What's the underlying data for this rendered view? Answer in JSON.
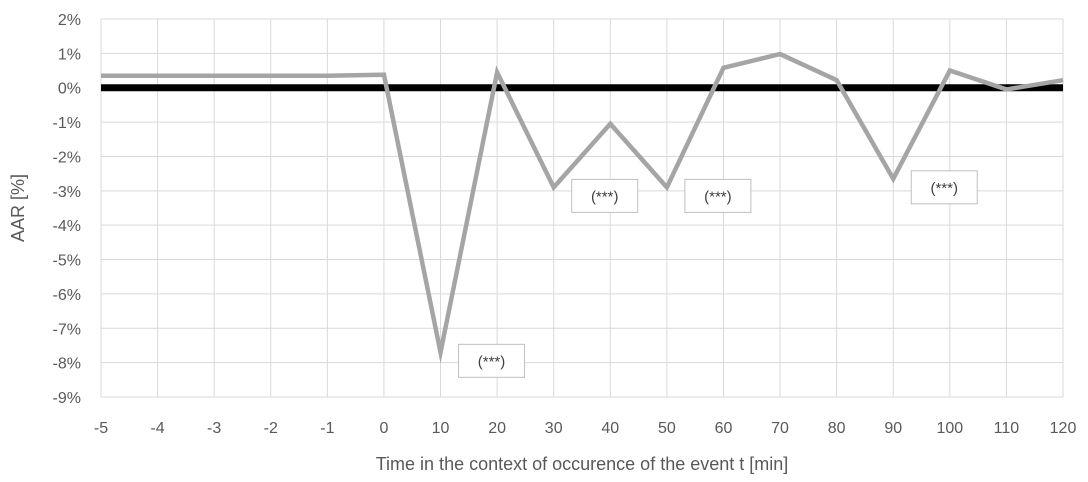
{
  "chart_data": {
    "type": "line",
    "xlabel": "Time in the context of occurence of the event t [min]",
    "ylabel": "AAR [%]",
    "ylim": [
      -9,
      2
    ],
    "yticks": [
      2,
      1,
      0,
      -1,
      -2,
      -3,
      -4,
      -5,
      -6,
      -7,
      -8,
      -9
    ],
    "ytick_labels": [
      "2%",
      "1%",
      "0%",
      "-1%",
      "-2%",
      "-3%",
      "-4%",
      "-5%",
      "-6%",
      "-7%",
      "-8%",
      "-9%"
    ],
    "categories": [
      "-5",
      "-4",
      "-3",
      "-2",
      "-1",
      "0",
      "10",
      "20",
      "30",
      "40",
      "50",
      "60",
      "70",
      "80",
      "90",
      "100",
      "110",
      "120"
    ],
    "series": [
      {
        "values": [
          0.35,
          0.35,
          0.35,
          0.35,
          0.35,
          0.38,
          -7.7,
          0.45,
          -2.9,
          -1.05,
          -2.9,
          0.58,
          0.98,
          0.22,
          -2.65,
          0.5,
          -0.05,
          0.22
        ],
        "color": "#a5a5a5"
      }
    ],
    "zero_line_color": "#000000",
    "grid": true,
    "annotations": [
      {
        "category": "10",
        "text": "(***)"
      },
      {
        "category": "30",
        "text": "(***)"
      },
      {
        "category": "50",
        "text": "(***)"
      },
      {
        "category": "90",
        "text": "(***)"
      }
    ]
  }
}
